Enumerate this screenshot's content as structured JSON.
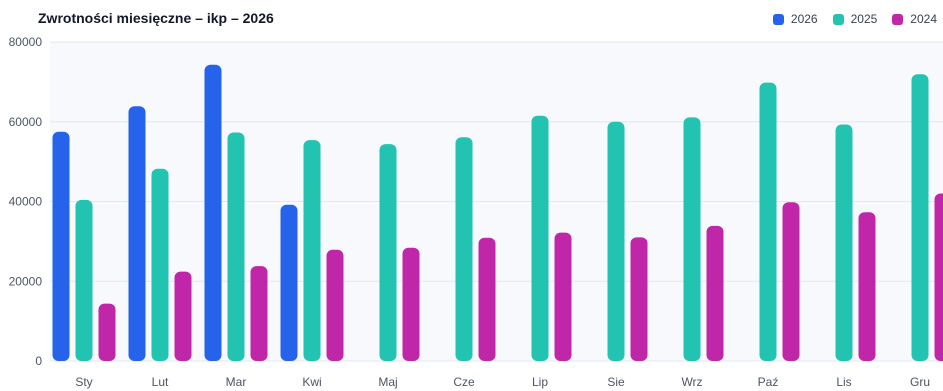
{
  "colors": {
    "2026": "#2563eb",
    "2025": "#22c3b0",
    "2024": "#c026a8",
    "plot_bg": "#f7f9fd",
    "grid": "#e3e8ef"
  },
  "chart_data": {
    "type": "bar",
    "title": "Zwrotności miesięczne – ikp – 2026",
    "xlabel": "",
    "ylabel": "",
    "ylim": [
      0,
      80000
    ],
    "yticks": [
      0,
      20000,
      40000,
      60000,
      80000
    ],
    "grid": true,
    "legend_position": "top-right",
    "categories": [
      "Sty",
      "Lut",
      "Mar",
      "Kwi",
      "Maj",
      "Cze",
      "Lip",
      "Sie",
      "Wrz",
      "Paź",
      "Lis",
      "Gru"
    ],
    "series": [
      {
        "name": "2026",
        "color": "#2563eb",
        "values": [
          57500,
          63900,
          74300,
          39200,
          null,
          null,
          null,
          null,
          null,
          null,
          null,
          null
        ]
      },
      {
        "name": "2025",
        "color": "#22c3b0",
        "values": [
          40400,
          48200,
          57300,
          55400,
          54400,
          56100,
          61500,
          60000,
          61100,
          69800,
          59300,
          71900
        ]
      },
      {
        "name": "2024",
        "color": "#c026a8",
        "values": [
          14400,
          22400,
          23800,
          27900,
          28400,
          30900,
          32200,
          31000,
          33900,
          39800,
          37300,
          42000
        ]
      }
    ]
  }
}
